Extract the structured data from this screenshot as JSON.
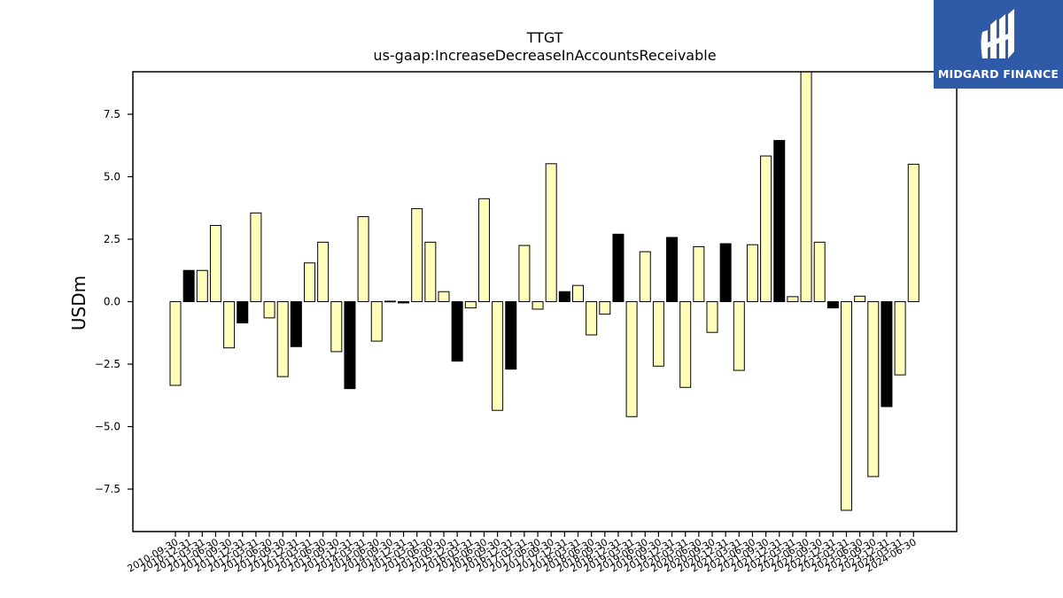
{
  "logo": {
    "text": "MIDGARD FINANCE",
    "background": "#2f5aa8",
    "icon": "midgard-logo-icon"
  },
  "chart_data": {
    "type": "bar",
    "title": "TTGT",
    "subtitle": "us-gaap:IncreaseDecreaseInAccountsReceivable",
    "ylabel": "USDm",
    "xlabel": "",
    "ylim": [
      -9.2,
      9.2
    ],
    "yticks": [
      -7.5,
      -5.0,
      -2.5,
      0.0,
      2.5,
      5.0,
      7.5
    ],
    "ytick_labels": [
      "−7.5",
      "−5.0",
      "−2.5",
      "0.0",
      "2.5",
      "5.0",
      "7.5"
    ],
    "grid": false,
    "colors": {
      "default": "#ffffbb",
      "highlight": "#000000",
      "edge": "#000000"
    },
    "categories": [
      "2010-09-30",
      "2010-12-31",
      "2011-03-31",
      "2011-06-30",
      "2011-09-30",
      "2011-12-31",
      "2012-03-31",
      "2012-06-30",
      "2012-09-30",
      "2012-12-31",
      "2013-03-31",
      "2013-06-30",
      "2013-09-30",
      "2013-12-31",
      "2014-03-31",
      "2014-06-30",
      "2014-09-30",
      "2014-12-31",
      "2015-03-31",
      "2015-06-30",
      "2015-09-30",
      "2015-12-31",
      "2016-03-31",
      "2016-06-30",
      "2016-09-30",
      "2016-12-31",
      "2017-03-31",
      "2017-06-30",
      "2017-09-30",
      "2017-12-31",
      "2018-03-31",
      "2018-06-30",
      "2018-09-30",
      "2018-12-31",
      "2019-03-31",
      "2019-06-30",
      "2019-09-30",
      "2019-12-31",
      "2020-03-31",
      "2020-06-30",
      "2020-09-30",
      "2020-12-31",
      "2021-03-31",
      "2021-06-30",
      "2021-09-30",
      "2021-12-31",
      "2022-03-31",
      "2022-06-30",
      "2022-09-30",
      "2022-12-31",
      "2023-03-31",
      "2023-06-30",
      "2023-09-30",
      "2023-12-31",
      "2024-03-31",
      "2024-06-30"
    ],
    "values": [
      -3.35,
      1.25,
      1.25,
      3.05,
      -1.85,
      -0.85,
      3.55,
      -0.65,
      -3.0,
      -1.8,
      1.55,
      2.38,
      -2.0,
      -3.48,
      3.4,
      -1.58,
      0.02,
      -0.05,
      3.72,
      2.38,
      0.4,
      -2.38,
      -0.25,
      4.12,
      -4.35,
      -2.7,
      2.25,
      -0.3,
      5.52,
      0.4,
      0.65,
      -1.33,
      -0.5,
      2.7,
      -4.6,
      2.0,
      -2.58,
      2.57,
      -3.43,
      2.2,
      -1.23,
      2.32,
      -2.75,
      2.28,
      5.83,
      6.45,
      0.2,
      9.2,
      2.38,
      -0.25,
      -8.35,
      0.22,
      -7.0,
      -4.2,
      -2.93,
      5.5
    ],
    "highlight": [
      false,
      true,
      false,
      false,
      false,
      true,
      false,
      false,
      false,
      true,
      false,
      false,
      false,
      true,
      false,
      false,
      false,
      true,
      false,
      false,
      false,
      true,
      false,
      false,
      false,
      true,
      false,
      false,
      false,
      true,
      false,
      false,
      false,
      true,
      false,
      false,
      false,
      true,
      false,
      false,
      false,
      true,
      false,
      false,
      false,
      true,
      false,
      false,
      false,
      true,
      false,
      false,
      false,
      true,
      false,
      false
    ]
  }
}
